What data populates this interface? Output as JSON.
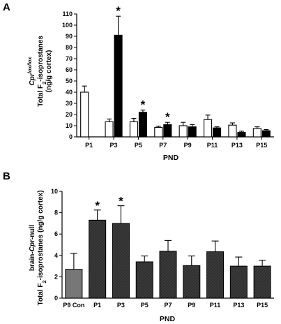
{
  "chart_data": [
    {
      "panel": "A",
      "type": "bar",
      "ylabel_line1_parts": [
        "Cpr",
        "lox/lox"
      ],
      "ylabel_line2_parts": [
        "Total F",
        "2",
        "-isoprostanes"
      ],
      "ylabel_line3": "(ng/g cortex)",
      "xlabel": "PND",
      "ylim": [
        0,
        110
      ],
      "yticks": [
        0,
        10,
        20,
        30,
        40,
        50,
        60,
        70,
        80,
        90,
        100,
        110
      ],
      "categories": [
        "P1",
        "P3",
        "P5",
        "P7",
        "P9",
        "P11",
        "P13",
        "P15"
      ],
      "series": [
        {
          "fill": "#ffffff",
          "values": [
            40,
            13.5,
            13.5,
            8.5,
            10,
            15.5,
            10.5,
            7.5
          ],
          "errors": [
            5.5,
            2.5,
            3,
            1,
            3,
            4,
            2,
            1.5
          ]
        },
        {
          "fill": "#000000",
          "values": [
            null,
            91,
            22,
            11,
            9,
            8,
            4,
            5.5
          ],
          "errors": [
            null,
            17,
            2,
            2,
            2,
            1,
            1,
            1
          ]
        }
      ],
      "significance": [
        {
          "category": "P3",
          "series": 1,
          "mark": "*"
        },
        {
          "category": "P5",
          "series": 1,
          "mark": "*"
        },
        {
          "category": "P7",
          "series": 1,
          "mark": "*"
        }
      ]
    },
    {
      "panel": "B",
      "type": "bar",
      "ylabel_line1_parts": [
        "brain-",
        "Cpr",
        "-null"
      ],
      "ylabel_line2_parts": [
        "Total F",
        "2",
        "-isoprostanes (ng/g cortex)"
      ],
      "xlabel": "PND",
      "ylim": [
        0,
        10
      ],
      "yticks": [
        0,
        2,
        4,
        6,
        8,
        10
      ],
      "categories": [
        "P9 Con",
        "P1",
        "P3",
        "P5",
        "P7",
        "P9",
        "P11",
        "P13",
        "P15"
      ],
      "values": [
        2.7,
        7.3,
        7.0,
        3.4,
        4.4,
        3.05,
        4.35,
        3.0,
        3.0
      ],
      "errors": [
        1.5,
        0.95,
        1.65,
        0.55,
        1.0,
        0.9,
        1.0,
        0.85,
        0.55
      ],
      "fills": [
        "#777777",
        "#3a3a3a",
        "#3a3a3a",
        "#3a3a3a",
        "#3a3a3a",
        "#3a3a3a",
        "#3a3a3a",
        "#3a3a3a",
        "#3a3a3a"
      ],
      "significance": [
        {
          "category": "P1",
          "mark": "*"
        },
        {
          "category": "P3",
          "mark": "*"
        }
      ]
    }
  ]
}
